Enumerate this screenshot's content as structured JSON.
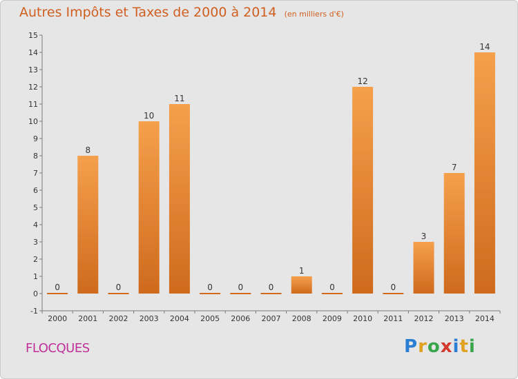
{
  "title": "Autres Impôts et Taxes de 2000 à 2014",
  "subtitle": "(en milliers d'€)",
  "commune": "FLOCQUES",
  "logo": {
    "letters": [
      "P",
      "r",
      "o",
      "x",
      "i",
      "t",
      "i"
    ],
    "colors": [
      "#2a7fd4",
      "#e0a020",
      "#3aa64c",
      "#d4382e",
      "#2a7fd4",
      "#e0a020",
      "#3aa64c"
    ]
  },
  "colors": {
    "bar_top": "#f5a04c",
    "bar_bottom": "#cf6a1c",
    "title": "#d05e1f",
    "commune": "#c0309a"
  },
  "chart_data": {
    "type": "bar",
    "title": "Autres Impôts et Taxes de 2000 à 2014",
    "subtitle": "(en milliers d'€)",
    "categories": [
      "2000",
      "2001",
      "2002",
      "2003",
      "2004",
      "2005",
      "2006",
      "2007",
      "2008",
      "2009",
      "2010",
      "2011",
      "2012",
      "2013",
      "2014"
    ],
    "values": [
      0,
      8,
      0,
      10,
      11,
      0,
      0,
      0,
      1,
      0,
      12,
      0,
      3,
      7,
      14
    ],
    "ylim": [
      -1,
      15
    ],
    "yticks": [
      -1,
      0,
      1,
      2,
      3,
      4,
      5,
      6,
      7,
      8,
      9,
      10,
      11,
      12,
      13,
      14,
      15
    ],
    "grid": false
  }
}
